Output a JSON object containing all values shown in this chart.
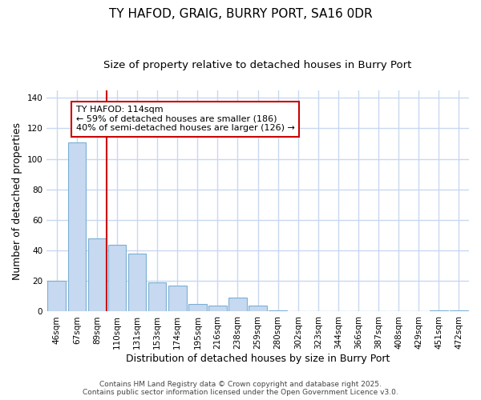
{
  "title": "TY HAFOD, GRAIG, BURRY PORT, SA16 0DR",
  "subtitle": "Size of property relative to detached houses in Burry Port",
  "xlabel": "Distribution of detached houses by size in Burry Port",
  "ylabel": "Number of detached properties",
  "categories": [
    "46sqm",
    "67sqm",
    "89sqm",
    "110sqm",
    "131sqm",
    "153sqm",
    "174sqm",
    "195sqm",
    "216sqm",
    "238sqm",
    "259sqm",
    "280sqm",
    "302sqm",
    "323sqm",
    "344sqm",
    "366sqm",
    "387sqm",
    "408sqm",
    "429sqm",
    "451sqm",
    "472sqm"
  ],
  "values": [
    20,
    111,
    48,
    44,
    38,
    19,
    17,
    5,
    4,
    9,
    4,
    1,
    0,
    0,
    0,
    0,
    0,
    0,
    0,
    1,
    1
  ],
  "bar_color": "#c6d9f0",
  "bar_edge_color": "#7bafd4",
  "marker_line_color": "#cc0000",
  "annotation_line0": "TY HAFOD: 114sqm",
  "annotation_line1": "← 59% of detached houses are smaller (186)",
  "annotation_line2": "40% of semi-detached houses are larger (126) →",
  "annotation_box_facecolor": "#ffffff",
  "annotation_box_edgecolor": "#cc0000",
  "ylim": [
    0,
    145
  ],
  "yticks": [
    0,
    20,
    40,
    60,
    80,
    100,
    120,
    140
  ],
  "bg_color": "#ffffff",
  "grid_color": "#c8d8f0",
  "footer_line1": "Contains HM Land Registry data © Crown copyright and database right 2025.",
  "footer_line2": "Contains public sector information licensed under the Open Government Licence v3.0.",
  "title_fontsize": 11,
  "subtitle_fontsize": 9.5,
  "tick_fontsize": 7.5,
  "label_fontsize": 9,
  "annotation_fontsize": 8,
  "footer_fontsize": 6.5
}
